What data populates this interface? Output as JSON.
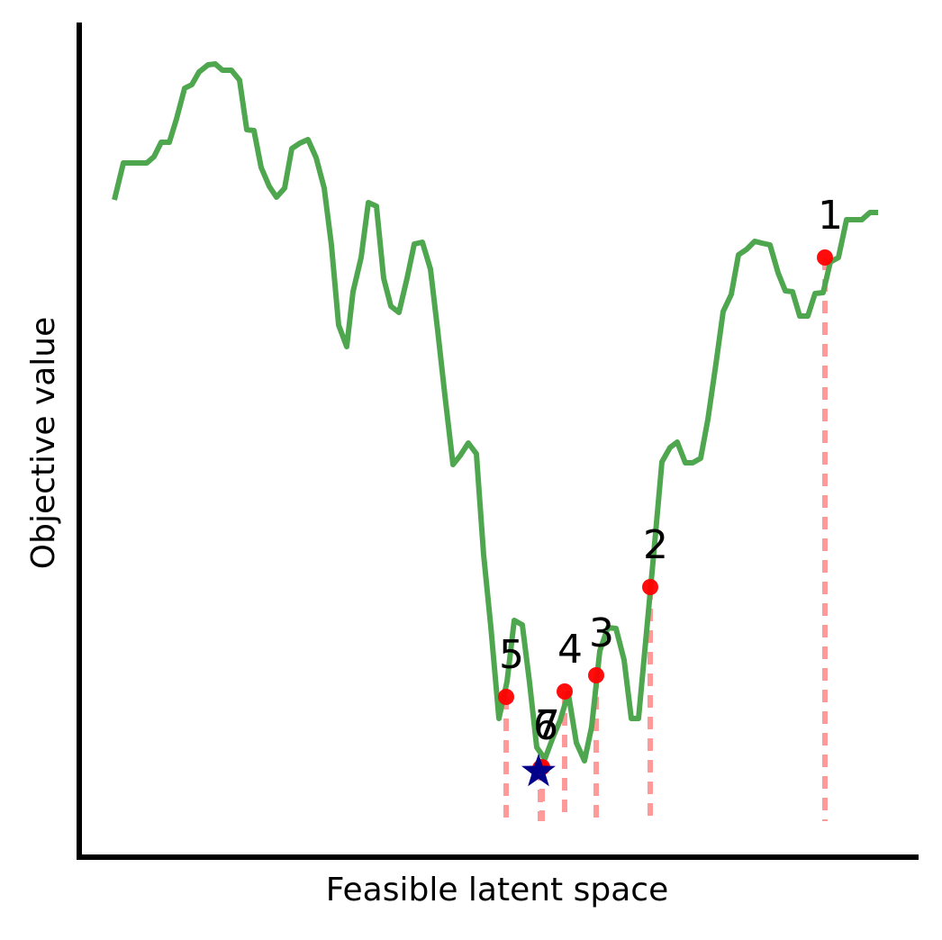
{
  "chart_data": {
    "type": "line",
    "xlabel": "Feasible latent space",
    "ylabel": "Objective value",
    "xlim": [
      0,
      932
    ],
    "ylim": [
      0,
      927
    ],
    "series": [
      {
        "color": "#4ea64e",
        "x": [
          39,
          49,
          75,
          83,
          91,
          100,
          108,
          117,
          125,
          133,
          143,
          151,
          159,
          169,
          178,
          186,
          194,
          202,
          211,
          219,
          228,
          236,
          245,
          254,
          263,
          272,
          280,
          288,
          297,
          304,
          313,
          321,
          330,
          338,
          346,
          355,
          364,
          372,
          381,
          390,
          398,
          406,
          415,
          423,
          432,
          441,
          449,
          457,
          466,
          475,
          483,
          492,
          500,
          508,
          517,
          526,
          534,
          543,
          552,
          561,
          569,
          578,
          587,
          596,
          605,
          613,
          621,
          630,
          638,
          647,
          656,
          664,
          673,
          681,
          690,
          698,
          707,
          715,
          724,
          732,
          741,
          750,
          758,
          767,
          776,
          784,
          792,
          800,
          809,
          817,
          826,
          834,
          843,
          852,
          861,
          869,
          878,
          887
        ],
        "values": [
          730,
          771,
          771,
          778,
          794,
          794,
          820,
          854,
          858,
          872,
          880,
          881,
          874,
          874,
          863,
          808,
          807,
          766,
          745,
          733,
          743,
          787,
          793,
          797,
          777,
          743,
          680,
          591,
          567,
          628,
          666,
          727,
          723,
          643,
          612,
          605,
          643,
          681,
          683,
          653,
          585,
          513,
          436,
          446,
          460,
          448,
          336,
          256,
          154,
          195,
          263,
          258,
          194,
          122,
          109,
          133,
          152,
          182,
          127,
          107,
          145,
          229,
          255,
          254,
          219,
          154,
          154,
          251,
          338,
          439,
          455,
          461,
          438,
          438,
          443,
          486,
          548,
          606,
          625,
          669,
          675,
          684,
          682,
          680,
          649,
          629,
          628,
          601,
          601,
          626,
          627,
          661,
          666,
          708,
          708,
          708,
          716,
          716
        ]
      }
    ],
    "points": {
      "color": "#ff0000",
      "drop_color": "#ff9a9a",
      "labels": [
        "1",
        "2",
        "3",
        "4",
        "5",
        "6",
        "7"
      ],
      "x": [
        828,
        634,
        574,
        539,
        474,
        512,
        514
      ],
      "values": [
        666,
        300,
        202,
        184,
        178,
        99,
        100
      ]
    },
    "best": {
      "color": "#00008b",
      "x": 510,
      "y": 95
    }
  }
}
